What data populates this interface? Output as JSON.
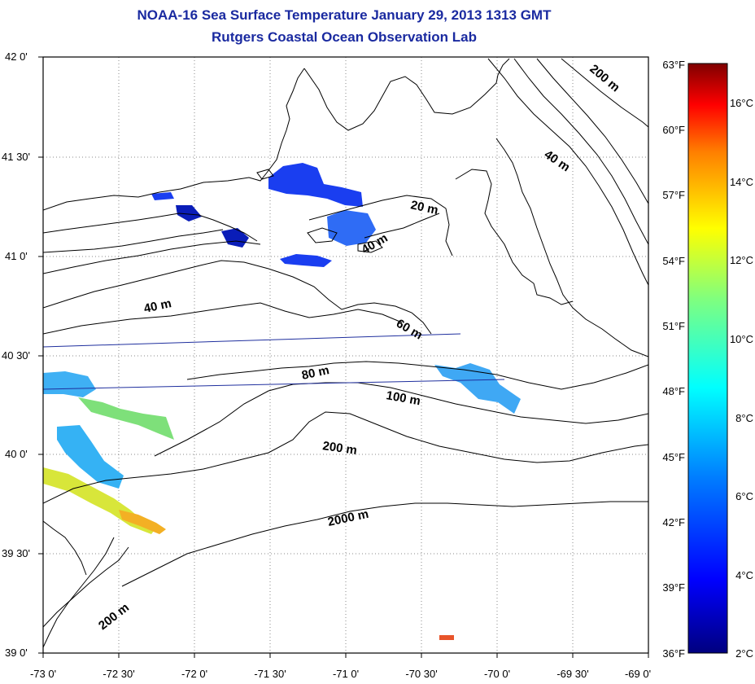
{
  "header": {
    "title": "NOAA-16 Sea Surface Temperature January 29, 2013 1313 GMT",
    "subtitle": "Rutgers Coastal Ocean Observation Lab"
  },
  "map": {
    "lat_labels": [
      "42 0'",
      "41 30'",
      "41 0'",
      "40 30'",
      "40 0'",
      "39 30'",
      "39 0'"
    ],
    "lon_labels": [
      "-73 0'",
      "-72 30'",
      "-72 0'",
      "-71 30'",
      "-71 0'",
      "-70 30'",
      "-70 0'",
      "-69 30'",
      "-69 0'"
    ],
    "contour_labels": {
      "c20": "20 m",
      "c40_shelf": "40 m",
      "c40_nshore": "40 m",
      "c40_gom": "40 m",
      "c60": "60 m",
      "c80": "80 m",
      "c100": "100 m",
      "c200_mid": "200 m",
      "c200_sw": "200 m",
      "c200_ne": "200 m",
      "c2000": "2000 m"
    }
  },
  "colorbar": {
    "fahrenheit_labels": [
      "63°F",
      "60°F",
      "57°F",
      "54°F",
      "51°F",
      "48°F",
      "45°F",
      "42°F",
      "39°F",
      "36°F"
    ],
    "celsius_labels": [
      "16°C",
      "14°C",
      "12°C",
      "10°C",
      "8°C",
      "6°C",
      "4°C",
      "2°C"
    ],
    "colors": [
      "#00007f",
      "#0000ff",
      "#007fff",
      "#00ffff",
      "#7fff7f",
      "#ffff00",
      "#ff7f00",
      "#ff0000",
      "#7f0000"
    ]
  }
}
